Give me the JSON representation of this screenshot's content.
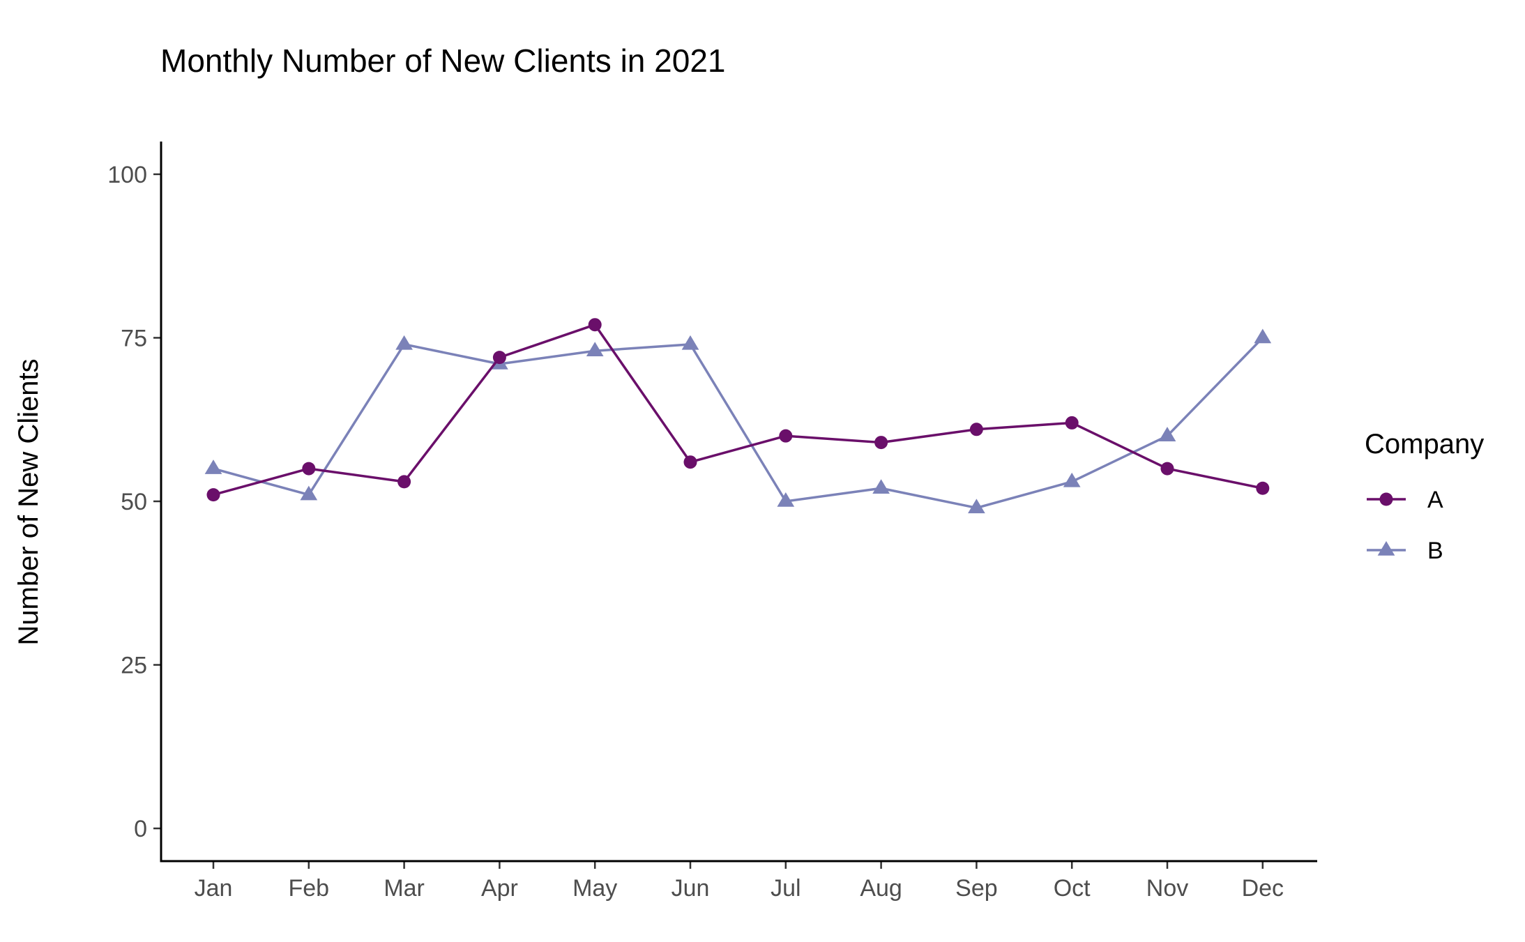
{
  "chart_data": {
    "type": "line",
    "title": "Monthly Number of New Clients in 2021",
    "xlabel": "",
    "ylabel": "Number of New Clients",
    "categories": [
      "Jan",
      "Feb",
      "Mar",
      "Apr",
      "May",
      "Jun",
      "Jul",
      "Aug",
      "Sep",
      "Oct",
      "Nov",
      "Dec"
    ],
    "ylim": [
      -5,
      105
    ],
    "yticks": [
      0,
      25,
      50,
      75,
      100
    ],
    "grid": false,
    "legend": {
      "title": "Company",
      "placement": "right"
    },
    "series": [
      {
        "name": "A",
        "color": "#6a0f6a",
        "marker": "circle",
        "values": [
          51,
          55,
          53,
          72,
          77,
          56,
          60,
          59,
          61,
          62,
          55,
          52
        ]
      },
      {
        "name": "B",
        "color": "#7b82b8",
        "marker": "triangle",
        "values": [
          55,
          51,
          74,
          71,
          73,
          74,
          50,
          52,
          49,
          53,
          60,
          75
        ]
      }
    ]
  }
}
